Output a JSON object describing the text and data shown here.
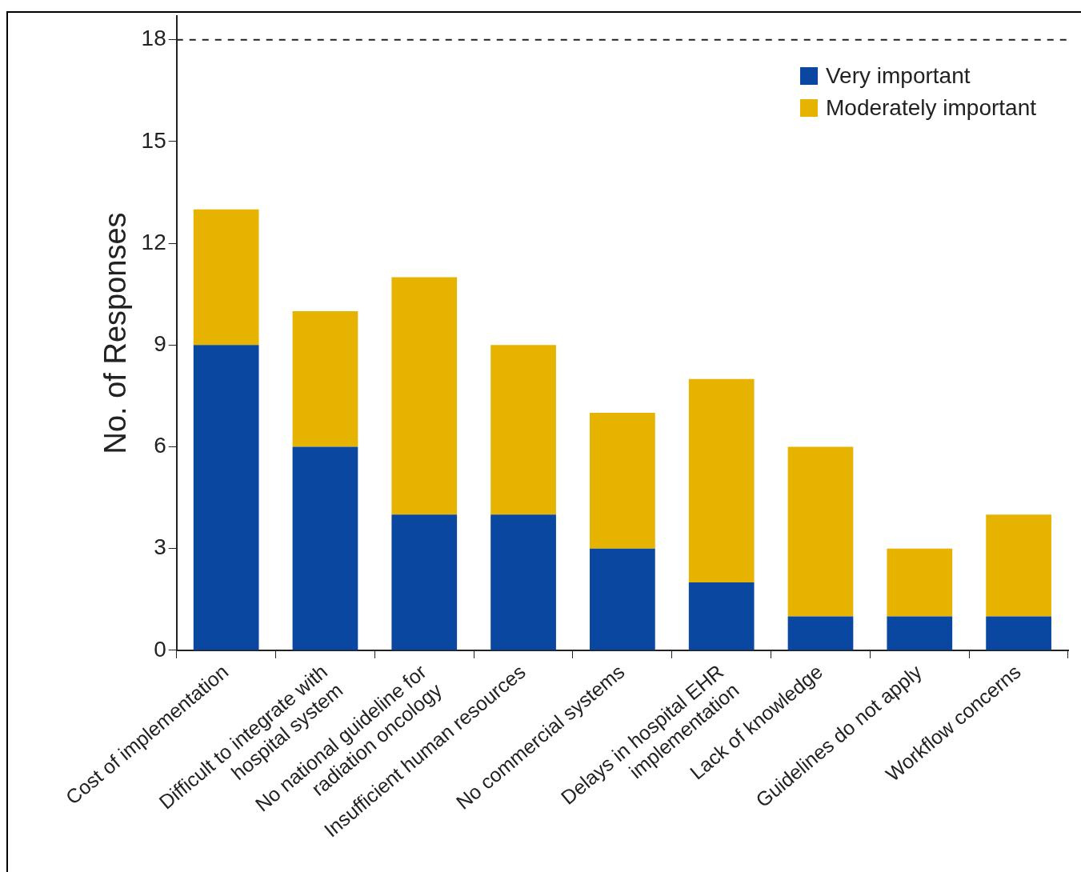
{
  "chart_data": {
    "type": "bar",
    "stacked": true,
    "ylabel": "No. of Responses",
    "categories": [
      "Cost of implementation",
      "Difficult to integrate with\nhospital system",
      "No national guideline for\nradiation oncology",
      "Insufficient human resources",
      "No commercial systems",
      "Delays in hospital EHR\nimplementation",
      "Lack of knowledge",
      "Guidelines do not apply",
      "Workflow concerns"
    ],
    "series": [
      {
        "name": "Very important",
        "color": "#0a47a1",
        "values": [
          9,
          6,
          4,
          4,
          3,
          2,
          1,
          1,
          1
        ]
      },
      {
        "name": "Moderately important",
        "color": "#e6b400",
        "values": [
          4,
          4,
          7,
          5,
          4,
          6,
          5,
          2,
          3
        ]
      }
    ],
    "ylim": [
      0,
      18.7
    ],
    "yticks": [
      0,
      3,
      6,
      9,
      12,
      15,
      18
    ],
    "grid": false,
    "legend": "top right",
    "ref_lines": [
      {
        "axis": "y",
        "value": 18,
        "color": "#222222",
        "line_style": "dashed"
      }
    ]
  }
}
